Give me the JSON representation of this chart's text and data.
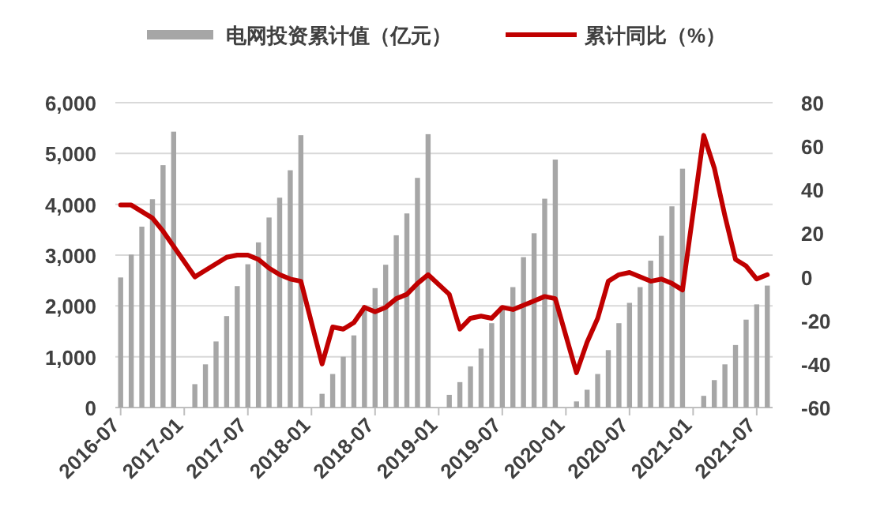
{
  "chart_data": {
    "type": "bar",
    "categories": [
      "2016-07",
      null,
      null,
      null,
      null,
      null,
      "2017-01",
      null,
      null,
      null,
      null,
      null,
      "2017-07",
      null,
      null,
      null,
      null,
      null,
      "2018-01",
      null,
      null,
      null,
      null,
      null,
      "2018-07",
      null,
      null,
      null,
      null,
      null,
      "2019-01",
      null,
      null,
      null,
      null,
      null,
      "2019-07",
      null,
      null,
      null,
      null,
      null,
      "2020-01",
      null,
      null,
      null,
      null,
      null,
      "2020-07",
      null,
      null,
      null,
      null,
      null,
      "2021-01",
      null,
      null,
      null,
      null,
      null,
      "2021-07",
      null
    ],
    "series": [
      {
        "name": "电网投资累计值（亿元）",
        "color": "#a6a6a6",
        "values": [
          2560,
          3010,
          3560,
          4100,
          4770,
          5430,
          null,
          460,
          850,
          1300,
          1800,
          2390,
          2820,
          3250,
          3740,
          4130,
          4670,
          5360,
          null,
          270,
          660,
          1000,
          1420,
          2010,
          2350,
          2810,
          3390,
          3820,
          4520,
          5380,
          null,
          250,
          500,
          810,
          1160,
          1660,
          1990,
          2370,
          2960,
          3430,
          4110,
          4880,
          null,
          120,
          350,
          660,
          1130,
          1660,
          2060,
          2370,
          2890,
          3380,
          3960,
          4700,
          null,
          230,
          540,
          850,
          1230,
          1730,
          2030,
          2400
        ]
      },
      {
        "name": "累计同比（%）",
        "type": "line",
        "axis": "y2",
        "color": "#c00000",
        "values": [
          33,
          33,
          30,
          27,
          21,
          14,
          null,
          0,
          3,
          6,
          9,
          10,
          10,
          8,
          4,
          1,
          -1,
          -2,
          null,
          -40,
          -23,
          -24,
          -21,
          -14,
          -16,
          -14,
          -10,
          -8,
          -3,
          1,
          null,
          -8,
          -24,
          -19,
          -18,
          -19,
          -14,
          -15,
          -13,
          -11,
          -9,
          -10,
          null,
          -44,
          -30,
          -19,
          -2,
          1,
          2,
          0,
          -2,
          -1,
          -3,
          -6,
          null,
          65,
          50,
          28,
          8,
          5,
          -1,
          1
        ]
      }
    ],
    "ylim": [
      0,
      6000
    ],
    "yticks": [
      0,
      {
        "value": 1000,
        "label": "1,000"
      },
      {
        "value": 2000,
        "label": "2,000"
      },
      {
        "value": 3000,
        "label": "3,000"
      },
      {
        "value": 4000,
        "label": "4,000"
      },
      {
        "value": 5000,
        "label": "5,000"
      },
      {
        "value": 6000,
        "label": "6,000"
      }
    ],
    "y2lim": [
      -60,
      80
    ],
    "y2ticks": [
      -60,
      -40,
      -20,
      0,
      20,
      40,
      60,
      80
    ],
    "grid": "y",
    "legend": "top"
  }
}
